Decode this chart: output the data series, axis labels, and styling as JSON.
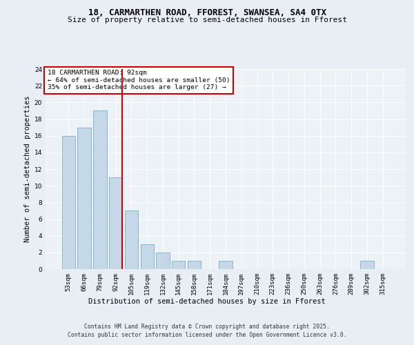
{
  "title_line1": "18, CARMARTHEN ROAD, FFOREST, SWANSEA, SA4 0TX",
  "title_line2": "Size of property relative to semi-detached houses in Fforest",
  "xlabel": "Distribution of semi-detached houses by size in Fforest",
  "ylabel": "Number of semi-detached properties",
  "bar_labels": [
    "53sqm",
    "66sqm",
    "79sqm",
    "92sqm",
    "105sqm",
    "119sqm",
    "132sqm",
    "145sqm",
    "158sqm",
    "171sqm",
    "184sqm",
    "197sqm",
    "210sqm",
    "223sqm",
    "236sqm",
    "250sqm",
    "263sqm",
    "276sqm",
    "289sqm",
    "302sqm",
    "315sqm"
  ],
  "bar_values": [
    16,
    17,
    19,
    11,
    7,
    3,
    2,
    1,
    1,
    0,
    1,
    0,
    0,
    0,
    0,
    0,
    0,
    0,
    0,
    1,
    0
  ],
  "bar_color": "#c5d8e8",
  "bar_edge_color": "#7aafc8",
  "highlight_bar_index": 3,
  "vline_color": "#cc0000",
  "annotation_title": "18 CARMARTHEN ROAD: 92sqm",
  "annotation_line2": "← 64% of semi-detached houses are smaller (50)",
  "annotation_line3": "35% of semi-detached houses are larger (27) →",
  "annotation_box_color": "#ffffff",
  "annotation_box_edge": "#cc0000",
  "ylim": [
    0,
    24
  ],
  "yticks": [
    0,
    2,
    4,
    6,
    8,
    10,
    12,
    14,
    16,
    18,
    20,
    22,
    24
  ],
  "bg_color": "#e8eef4",
  "plot_bg_color": "#edf2f7",
  "footer_line1": "Contains HM Land Registry data © Crown copyright and database right 2025.",
  "footer_line2": "Contains public sector information licensed under the Open Government Licence v3.0.",
  "title_fontsize": 9,
  "subtitle_fontsize": 8,
  "axis_label_fontsize": 7.5,
  "tick_fontsize": 6.5,
  "annotation_fontsize": 6.8,
  "footer_fontsize": 5.8
}
